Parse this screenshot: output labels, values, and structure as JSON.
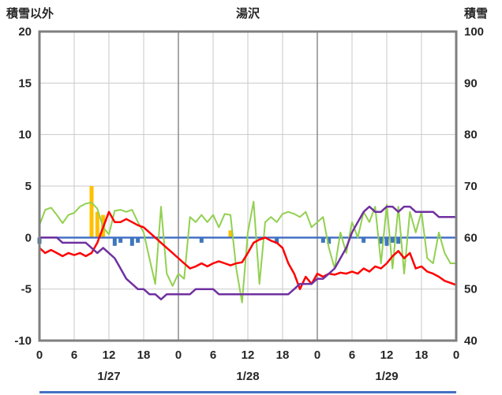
{
  "chart_data": {
    "type": "line",
    "title": "湯沢",
    "x_unit": "hour",
    "x_range": [
      0,
      72
    ],
    "left_axis": {
      "title": "積雪以外",
      "min": -10,
      "max": 20,
      "ticks": [
        20,
        15,
        10,
        5,
        0,
        -5,
        -10
      ]
    },
    "right_axis": {
      "title": "積雪",
      "min": 40,
      "max": 100,
      "ticks": [
        100,
        90,
        80,
        70,
        60,
        50,
        40
      ]
    },
    "x_ticks": {
      "hours": [
        0,
        6,
        12,
        18,
        24,
        30,
        36,
        42,
        48,
        54,
        60,
        66,
        72
      ],
      "labels": [
        "0",
        "6",
        "12",
        "18",
        "0",
        "6",
        "12",
        "18",
        "0",
        "6",
        "12",
        "18",
        "0"
      ]
    },
    "day_ticks": {
      "labels": [
        "1/27",
        "1/28",
        "1/29"
      ],
      "center_hours": [
        12,
        36,
        60
      ]
    },
    "colors": {
      "grid": "#C9C9C9",
      "grid_major": "#8C8C8C",
      "frame": "#7F7F7F",
      "text": "#262626"
    },
    "zero_line": {
      "color": "#4472C4",
      "value": 0
    },
    "series": [
      {
        "name": "green-line",
        "color": "#92D050",
        "axis": "left",
        "width": 2,
        "values": [
          1.2,
          2.7,
          2.9,
          2.2,
          1.4,
          2.2,
          2.4,
          3.0,
          3.3,
          3.4,
          2.8,
          1.0,
          0.3,
          2.6,
          2.7,
          2.5,
          2.7,
          1.5,
          0.5,
          -2.0,
          -4.5,
          3.0,
          -3.5,
          -4.7,
          -3.5,
          -4.0,
          2.0,
          1.5,
          2.2,
          1.5,
          2.2,
          1.0,
          2.3,
          2.2,
          -3.0,
          -6.3,
          0.5,
          3.5,
          -4.5,
          1.5,
          2.0,
          1.5,
          2.3,
          2.5,
          2.3,
          2.0,
          2.5,
          1.0,
          1.5,
          2.0,
          -1.0,
          -3.0,
          0.5,
          -1.5,
          1.5,
          0.0,
          2.5,
          1.5,
          3.0,
          -2.5,
          3.2,
          -3.0,
          3.0,
          -3.5,
          2.5,
          0.5,
          2.5,
          -2.0,
          -2.5,
          0.5,
          -1.5,
          -2.5,
          -2.5
        ]
      },
      {
        "name": "red-line",
        "color": "#FF0000",
        "axis": "left",
        "width": 2.5,
        "values": [
          -1.0,
          -1.5,
          -1.2,
          -1.5,
          -1.8,
          -1.5,
          -1.7,
          -1.5,
          -1.8,
          -1.5,
          -0.5,
          1.0,
          2.5,
          1.5,
          1.5,
          1.8,
          1.5,
          1.2,
          1.0,
          0.5,
          0.0,
          -0.5,
          -1.0,
          -1.5,
          -2.0,
          -2.5,
          -3.0,
          -2.8,
          -2.5,
          -2.8,
          -2.5,
          -2.3,
          -2.5,
          -2.7,
          -2.5,
          -2.4,
          -1.5,
          -0.5,
          -0.2,
          0.0,
          -0.3,
          -0.5,
          -1.0,
          -2.5,
          -3.5,
          -5.0,
          -3.8,
          -4.5,
          -3.5,
          -3.8,
          -3.5,
          -3.6,
          -3.4,
          -3.5,
          -3.3,
          -3.5,
          -3.0,
          -3.3,
          -2.8,
          -3.0,
          -2.5,
          -1.8,
          -1.3,
          -2.0,
          -1.5,
          -3.0,
          -2.8,
          -3.3,
          -3.5,
          -3.8,
          -4.2,
          -4.4,
          -4.6
        ]
      },
      {
        "name": "purple-line",
        "color": "#7030A0",
        "axis": "right",
        "width": 2.5,
        "values": [
          60,
          60,
          60,
          60,
          59,
          59,
          59,
          59,
          59,
          58,
          57,
          58,
          57,
          56,
          54,
          52,
          51,
          50,
          50,
          49,
          49,
          48,
          49,
          49,
          49,
          49,
          49,
          50,
          50,
          50,
          50,
          49,
          49,
          49,
          49,
          49,
          49,
          49,
          49,
          49,
          49,
          49,
          49,
          49,
          50,
          51,
          51,
          51,
          52,
          52,
          53,
          54,
          56,
          58,
          61,
          63,
          65,
          66,
          65,
          65,
          66,
          66,
          65,
          66,
          66,
          65,
          65,
          65,
          65,
          64,
          64,
          64,
          64
        ]
      }
    ],
    "bars": [
      {
        "name": "orange-bar",
        "color": "#FFC000",
        "axis": "left",
        "points": [
          {
            "hour": 9,
            "value": 5.0
          },
          {
            "hour": 10,
            "value": 2.5
          },
          {
            "hour": 11,
            "value": 2.2
          },
          {
            "hour": 33,
            "value": 0.7
          }
        ]
      },
      {
        "name": "blue-bar",
        "color": "#3E77BB",
        "axis": "left",
        "points": [
          {
            "hour": 0,
            "value": -0.6
          },
          {
            "hour": 13,
            "value": -0.8
          },
          {
            "hour": 14,
            "value": -0.5
          },
          {
            "hour": 16,
            "value": -0.8
          },
          {
            "hour": 17,
            "value": -0.5
          },
          {
            "hour": 28,
            "value": -0.5
          },
          {
            "hour": 41,
            "value": -0.6
          },
          {
            "hour": 49,
            "value": -0.5
          },
          {
            "hour": 50,
            "value": -0.6
          },
          {
            "hour": 56,
            "value": -0.5
          },
          {
            "hour": 59,
            "value": -0.6
          },
          {
            "hour": 60,
            "value": -0.8
          },
          {
            "hour": 61,
            "value": -0.5
          },
          {
            "hour": 62,
            "value": -0.6
          }
        ]
      }
    ]
  }
}
